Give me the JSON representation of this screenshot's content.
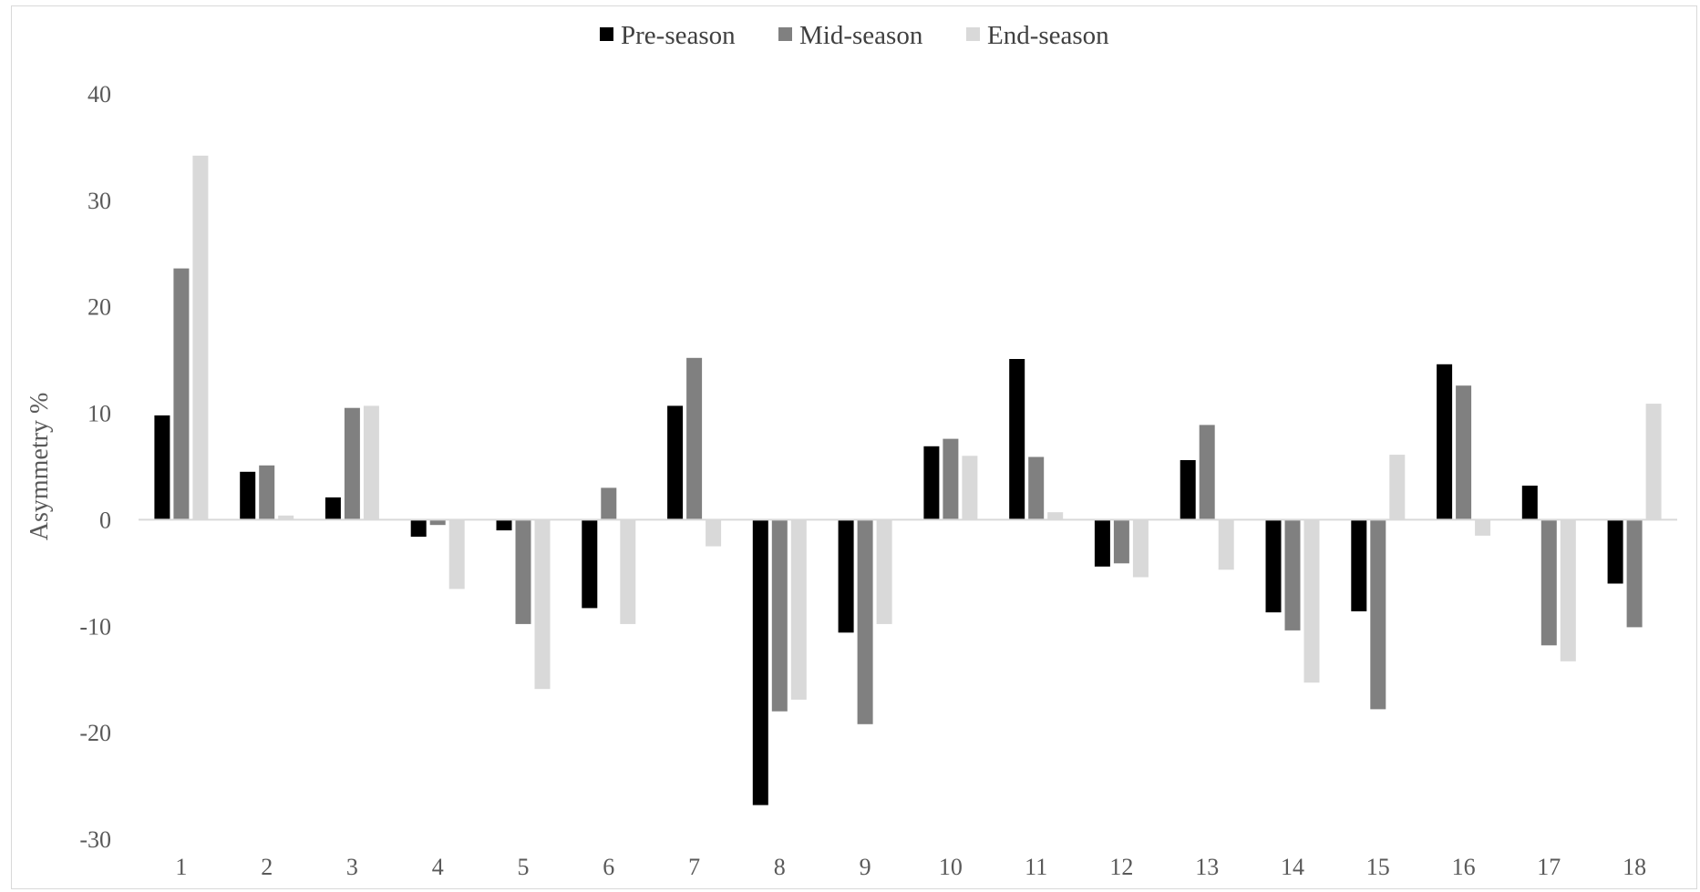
{
  "chart_data": {
    "type": "bar",
    "title": "",
    "xlabel": "",
    "ylabel": "Asymmetry %",
    "ylim": [
      -30,
      40
    ],
    "yticks": [
      40,
      30,
      20,
      10,
      0,
      -10,
      -20,
      -30
    ],
    "grid": false,
    "legend_position": "top-center",
    "categories": [
      "1",
      "2",
      "3",
      "4",
      "5",
      "6",
      "7",
      "8",
      "9",
      "10",
      "11",
      "12",
      "13",
      "14",
      "15",
      "16",
      "17",
      "18"
    ],
    "series": [
      {
        "name": "Pre-season",
        "color": "#000000",
        "values": [
          9.8,
          4.5,
          2.1,
          -1.6,
          -1.0,
          -8.3,
          10.7,
          -26.8,
          -10.6,
          6.9,
          15.1,
          -4.4,
          5.6,
          -8.7,
          -8.6,
          14.6,
          3.2,
          -6.0
        ]
      },
      {
        "name": "Mid-season",
        "color": "#808080",
        "values": [
          23.6,
          5.1,
          10.5,
          -0.5,
          -9.8,
          3.0,
          15.2,
          -18.0,
          -19.2,
          7.6,
          5.9,
          -4.1,
          8.9,
          -10.4,
          -17.8,
          12.6,
          -11.8,
          -10.1
        ]
      },
      {
        "name": "End-season",
        "color": "#d9d9d9",
        "values": [
          34.2,
          0.4,
          10.7,
          -6.5,
          -15.9,
          -9.8,
          -2.5,
          -16.9,
          -9.8,
          6.0,
          0.7,
          -5.4,
          -4.7,
          -15.3,
          6.1,
          -1.5,
          -13.3,
          10.9
        ]
      }
    ]
  }
}
